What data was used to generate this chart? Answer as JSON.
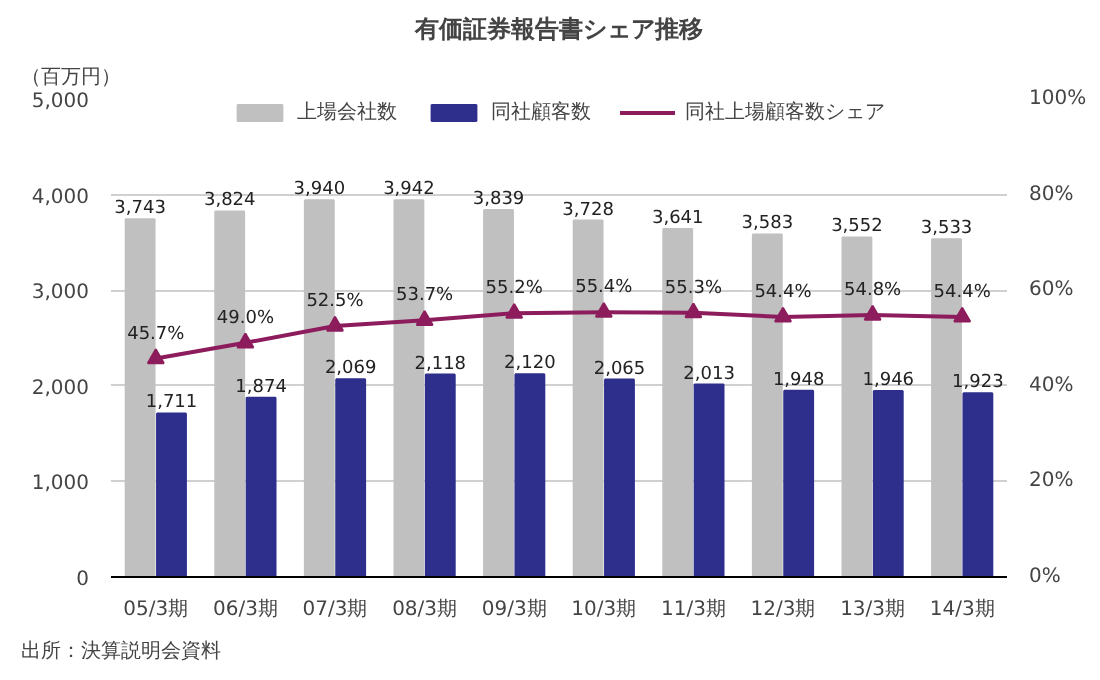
{
  "chart_data": {
    "type": "bar",
    "title": "有価証券報告書シェア推移",
    "ylabel": "（百万円）",
    "categories": [
      "05/3期",
      "06/3期",
      "07/3期",
      "08/3期",
      "09/3期",
      "10/3期",
      "11/3期",
      "12/3期",
      "13/3期",
      "14/3期"
    ],
    "series": [
      {
        "name": "上場会社数",
        "color": "#c0c0c0",
        "values": [
          3743,
          3824,
          3940,
          3942,
          3839,
          3728,
          3641,
          3583,
          3552,
          3533
        ],
        "value_labels": [
          "3,743",
          "3,824",
          "3,940",
          "3,942",
          "3,839",
          "3,728",
          "3,641",
          "3,583",
          "3,552",
          "3,533"
        ]
      },
      {
        "name": "同社顧客数",
        "color": "#2e2e8c",
        "values": [
          1711,
          1874,
          2069,
          2118,
          2120,
          2065,
          2013,
          1948,
          1946,
          1923
        ],
        "value_labels": [
          "1,711",
          "1,874",
          "2,069",
          "2,118",
          "2,120",
          "2,065",
          "2,013",
          "1,948",
          "1,946",
          "1,923"
        ]
      },
      {
        "name": "同社上場顧客数シェア",
        "type": "line",
        "axis": "y2",
        "marker": "triangle",
        "color": "#8c1c5c",
        "values": [
          45.7,
          49.0,
          52.5,
          53.7,
          55.2,
          55.4,
          55.3,
          54.4,
          54.8,
          54.4
        ],
        "value_labels": [
          "45.7%",
          "49.0%",
          "52.5%",
          "53.7%",
          "55.2%",
          "55.4%",
          "55.3%",
          "54.4%",
          "54.8%",
          "54.4%"
        ]
      }
    ],
    "ylim": [
      0,
      5000
    ],
    "yticks": [
      {
        "value": 0,
        "label": "0"
      },
      {
        "value": 1000,
        "label": "1,000"
      },
      {
        "value": 2000,
        "label": "2,000"
      },
      {
        "value": 3000,
        "label": "3,000"
      },
      {
        "value": 4000,
        "label": "4,000"
      },
      {
        "value": 5000,
        "label": "5,000"
      }
    ],
    "y2lim": [
      0,
      100
    ],
    "y2ticks": [
      {
        "value": 0,
        "label": "0%"
      },
      {
        "value": 20,
        "label": "20%"
      },
      {
        "value": 40,
        "label": "40%"
      },
      {
        "value": 60,
        "label": "60%"
      },
      {
        "value": 80,
        "label": "80%"
      },
      {
        "value": 100,
        "label": "100%"
      }
    ],
    "grid": "y",
    "legend": "top",
    "annotations": [
      "出所：決算説明会資料"
    ]
  }
}
